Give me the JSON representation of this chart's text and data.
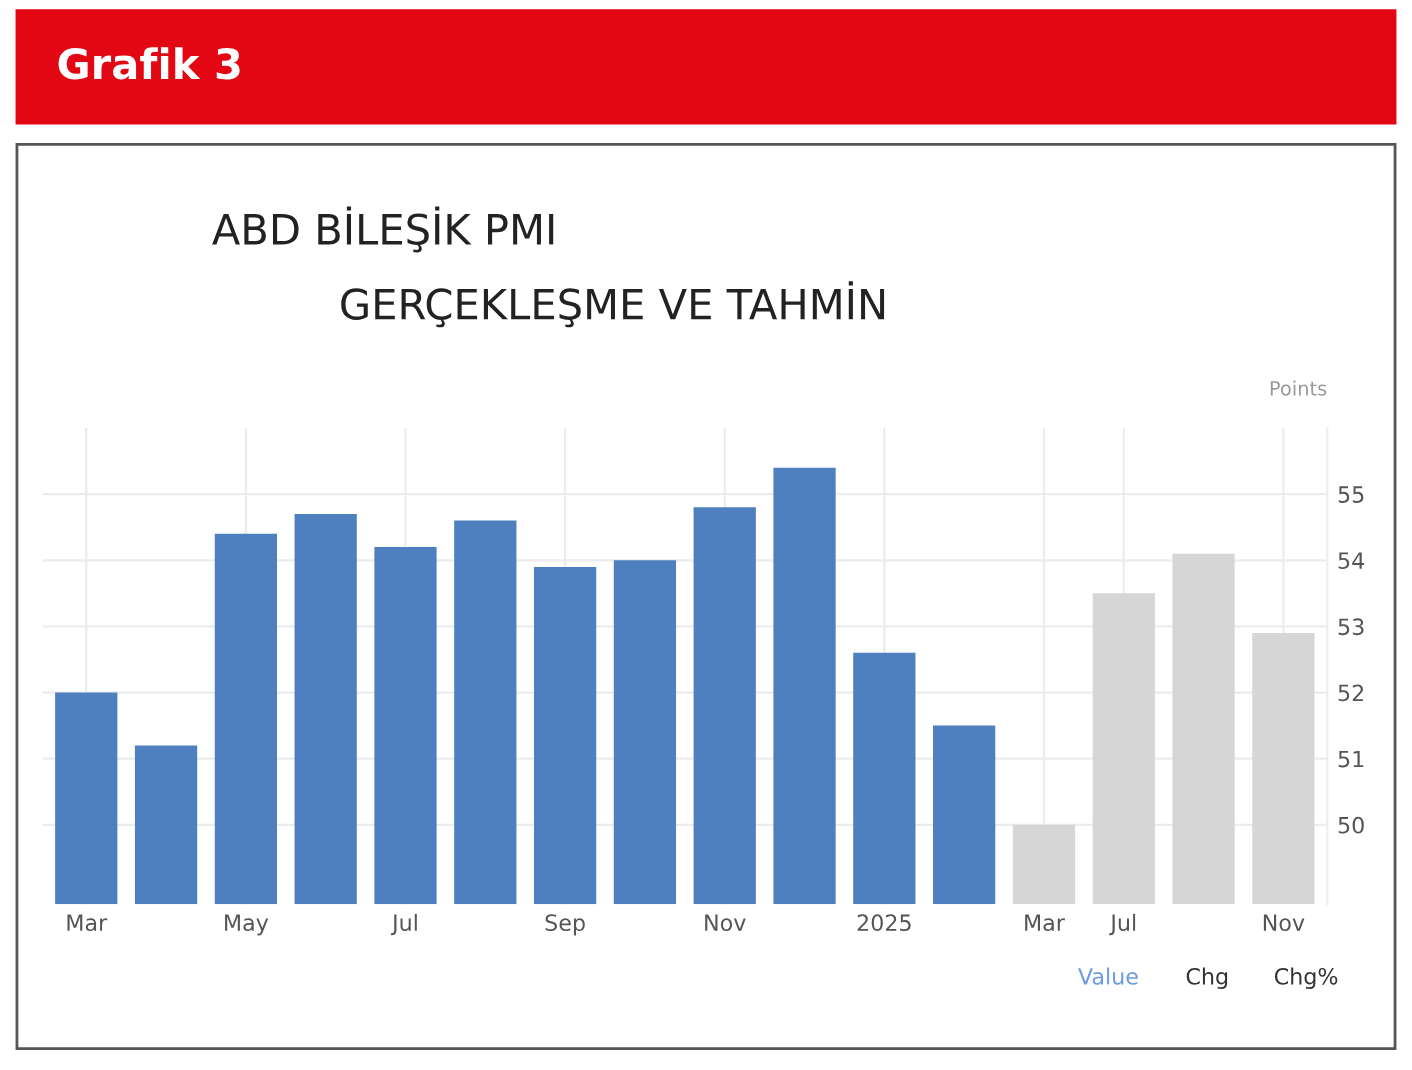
{
  "chart_data": {
    "type": "bar",
    "title": "Grafik 3",
    "subtitle": "ABD BİLEŞİK PMI\nGERÇEKLEŞME VE TAHMİN",
    "ylabel": "Points",
    "categories": [
      "Mar",
      null,
      "May",
      null,
      "Jul",
      null,
      "Sep",
      null,
      "Nov",
      null,
      "2025",
      null,
      "Mar",
      "Jul",
      null,
      "Nov"
    ],
    "values": [
      52.0,
      51.2,
      54.4,
      54.7,
      54.2,
      54.6,
      53.9,
      54.0,
      54.8,
      55.4,
      52.6,
      51.5,
      50.0,
      53.5,
      54.1,
      52.9
    ],
    "colors": [
      "#4e80c0",
      "#4e80c0",
      "#4e80c0",
      "#4e80c0",
      "#4e80c0",
      "#4e80c0",
      "#4e80c0",
      "#4e80c0",
      "#4e80c0",
      "#4e80c0",
      "#4e80c0",
      "#4e80c0",
      "#d6d6d6",
      "#d6d6d6",
      "#d6d6d6",
      "#d6d6d6"
    ],
    "ylim": [
      48.8,
      56
    ],
    "yticks": [
      50,
      51,
      52,
      53,
      54,
      55
    ],
    "grid": true,
    "annotations": [
      "Value",
      "Chg",
      "Chg%"
    ]
  }
}
